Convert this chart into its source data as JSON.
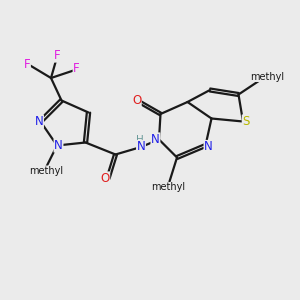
{
  "bg": "#ebebeb",
  "bond_color": "#1a1a1a",
  "lw": 1.6,
  "fs": 8.5,
  "colors": {
    "N": "#2020e8",
    "O": "#e02020",
    "S": "#b8b800",
    "F": "#e020e0",
    "C": "#1a1a1a",
    "H": "#6a9a9a"
  },
  "xlim": [
    0,
    10
  ],
  "ylim": [
    0,
    10
  ]
}
